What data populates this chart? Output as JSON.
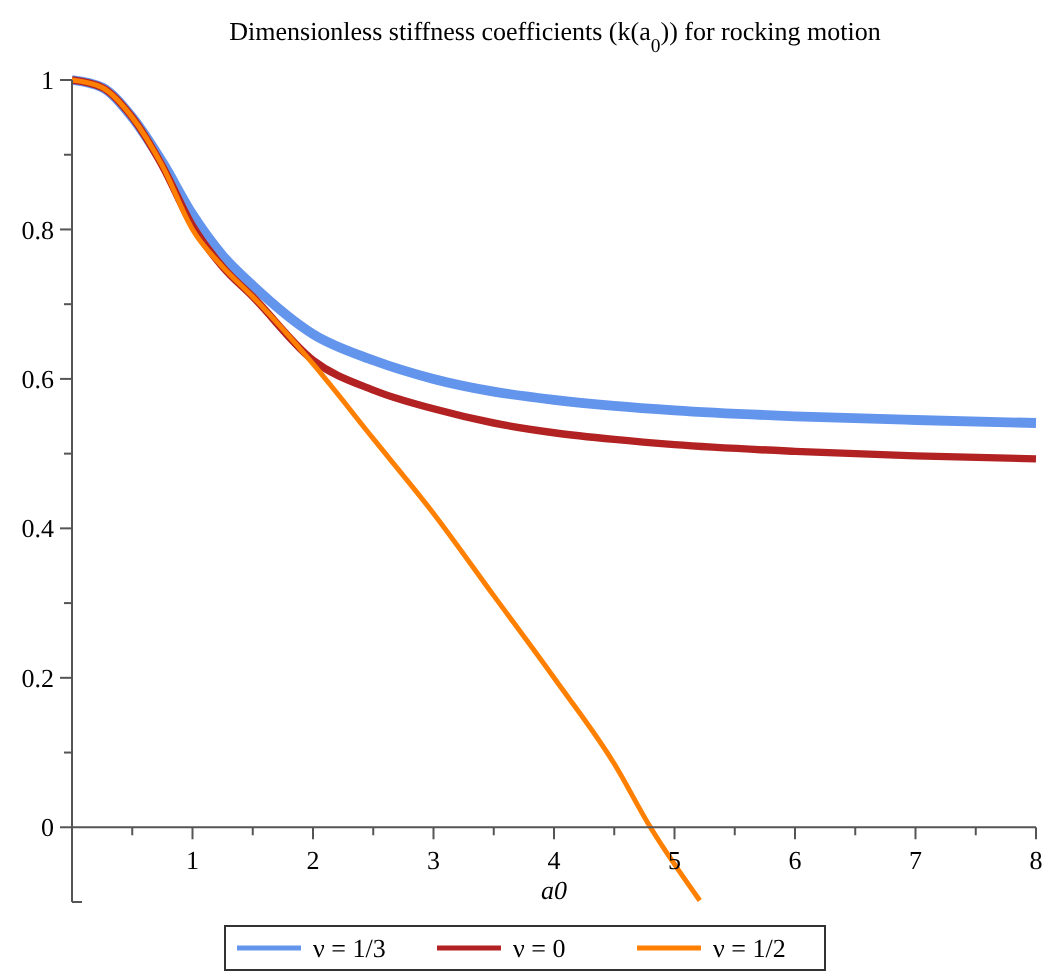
{
  "chart_data": {
    "type": "line",
    "title": "Dimensionless stiffness coefficients (k(a$_{0}$)) for rocking motion",
    "xlabel": "a0",
    "x": [
      0,
      0.25,
      0.5,
      0.75,
      1,
      1.25,
      1.5,
      2,
      2.5,
      3,
      3.5,
      4,
      4.5,
      5,
      6,
      7,
      8
    ],
    "series": [
      {
        "name": "ν = 1/3",
        "color": "#6495ed",
        "values": [
          1,
          0.99,
          0.95,
          0.89,
          0.82,
          0.765,
          0.725,
          0.66,
          0.625,
          0.6,
          0.583,
          0.572,
          0.564,
          0.558,
          0.55,
          0.545,
          0.541
        ]
      },
      {
        "name": "ν = 0",
        "color": "#b22222",
        "values": [
          1,
          0.99,
          0.95,
          0.885,
          0.805,
          0.75,
          0.71,
          0.625,
          0.585,
          0.56,
          0.541,
          0.528,
          0.519,
          0.512,
          0.503,
          0.497,
          0.493
        ]
      },
      {
        "name": "ν = 1/2",
        "color": "#ff8000",
        "x": [
          0,
          0.25,
          0.5,
          0.75,
          1,
          1.25,
          1.5,
          2,
          2.5,
          3,
          3.5,
          4,
          4.5,
          4.8,
          5.21
        ],
        "values": [
          1,
          0.99,
          0.95,
          0.885,
          0.8,
          0.75,
          0.71,
          0.62,
          0.52,
          0.42,
          0.31,
          0.2,
          0.085,
          0,
          -0.098
        ]
      }
    ],
    "xlim": [
      0,
      8
    ],
    "ylim": [
      -0.1,
      1
    ],
    "xticks": [
      {
        "value": 0.5,
        "label": null
      },
      1,
      {
        "value": 1.5,
        "label": null
      },
      2,
      {
        "value": 2.5,
        "label": null
      },
      3,
      {
        "value": 3.5,
        "label": null
      },
      4,
      {
        "value": 4.5,
        "label": null
      },
      5,
      {
        "value": 5.5,
        "label": null
      },
      6,
      {
        "value": 6.5,
        "label": null
      },
      7,
      {
        "value": 7.5,
        "label": null
      },
      8
    ],
    "yticks": [
      0,
      {
        "value": 0.1,
        "label": null
      },
      0.2,
      {
        "value": 0.3,
        "label": null
      },
      0.4,
      {
        "value": 0.5,
        "label": null
      },
      0.6,
      {
        "value": 0.7,
        "label": null
      },
      0.8,
      {
        "value": 0.9,
        "label": null
      },
      1
    ],
    "grid": false,
    "legend": "bottom",
    "line_style": "solid",
    "marker": "none"
  }
}
